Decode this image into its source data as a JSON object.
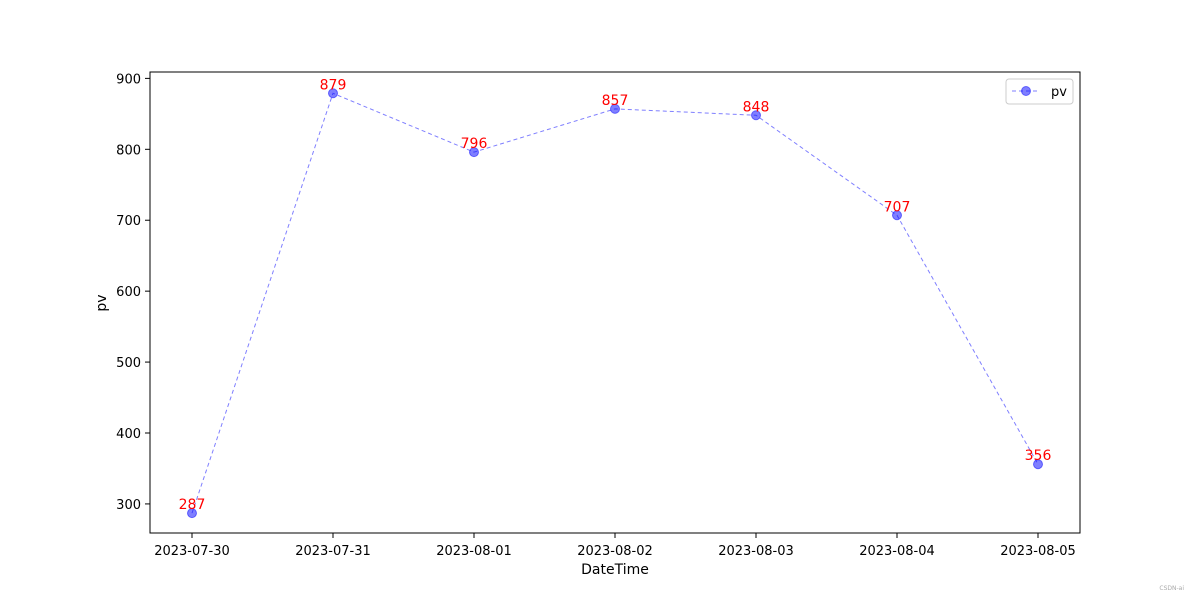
{
  "chart_data": {
    "type": "line",
    "x": [
      "2023-07-30",
      "2023-07-31",
      "2023-08-01",
      "2023-08-02",
      "2023-08-03",
      "2023-08-04",
      "2023-08-05"
    ],
    "series": [
      {
        "name": "pv",
        "values": [
          287,
          879,
          796,
          857,
          848,
          707,
          356
        ],
        "color": "#0000ff",
        "line_style": "dashed",
        "marker": "circle"
      }
    ],
    "data_labels": [
      "287",
      "879",
      "796",
      "857",
      "848",
      "707",
      "356"
    ],
    "data_label_color": "#ff0000",
    "xlabel": "DateTime",
    "ylabel": "pv",
    "ylim": [
      259,
      909
    ],
    "yticks": [
      300,
      400,
      500,
      600,
      700,
      800,
      900
    ],
    "grid": false,
    "legend_position": "top-right"
  },
  "watermark": "CSDN-ai"
}
